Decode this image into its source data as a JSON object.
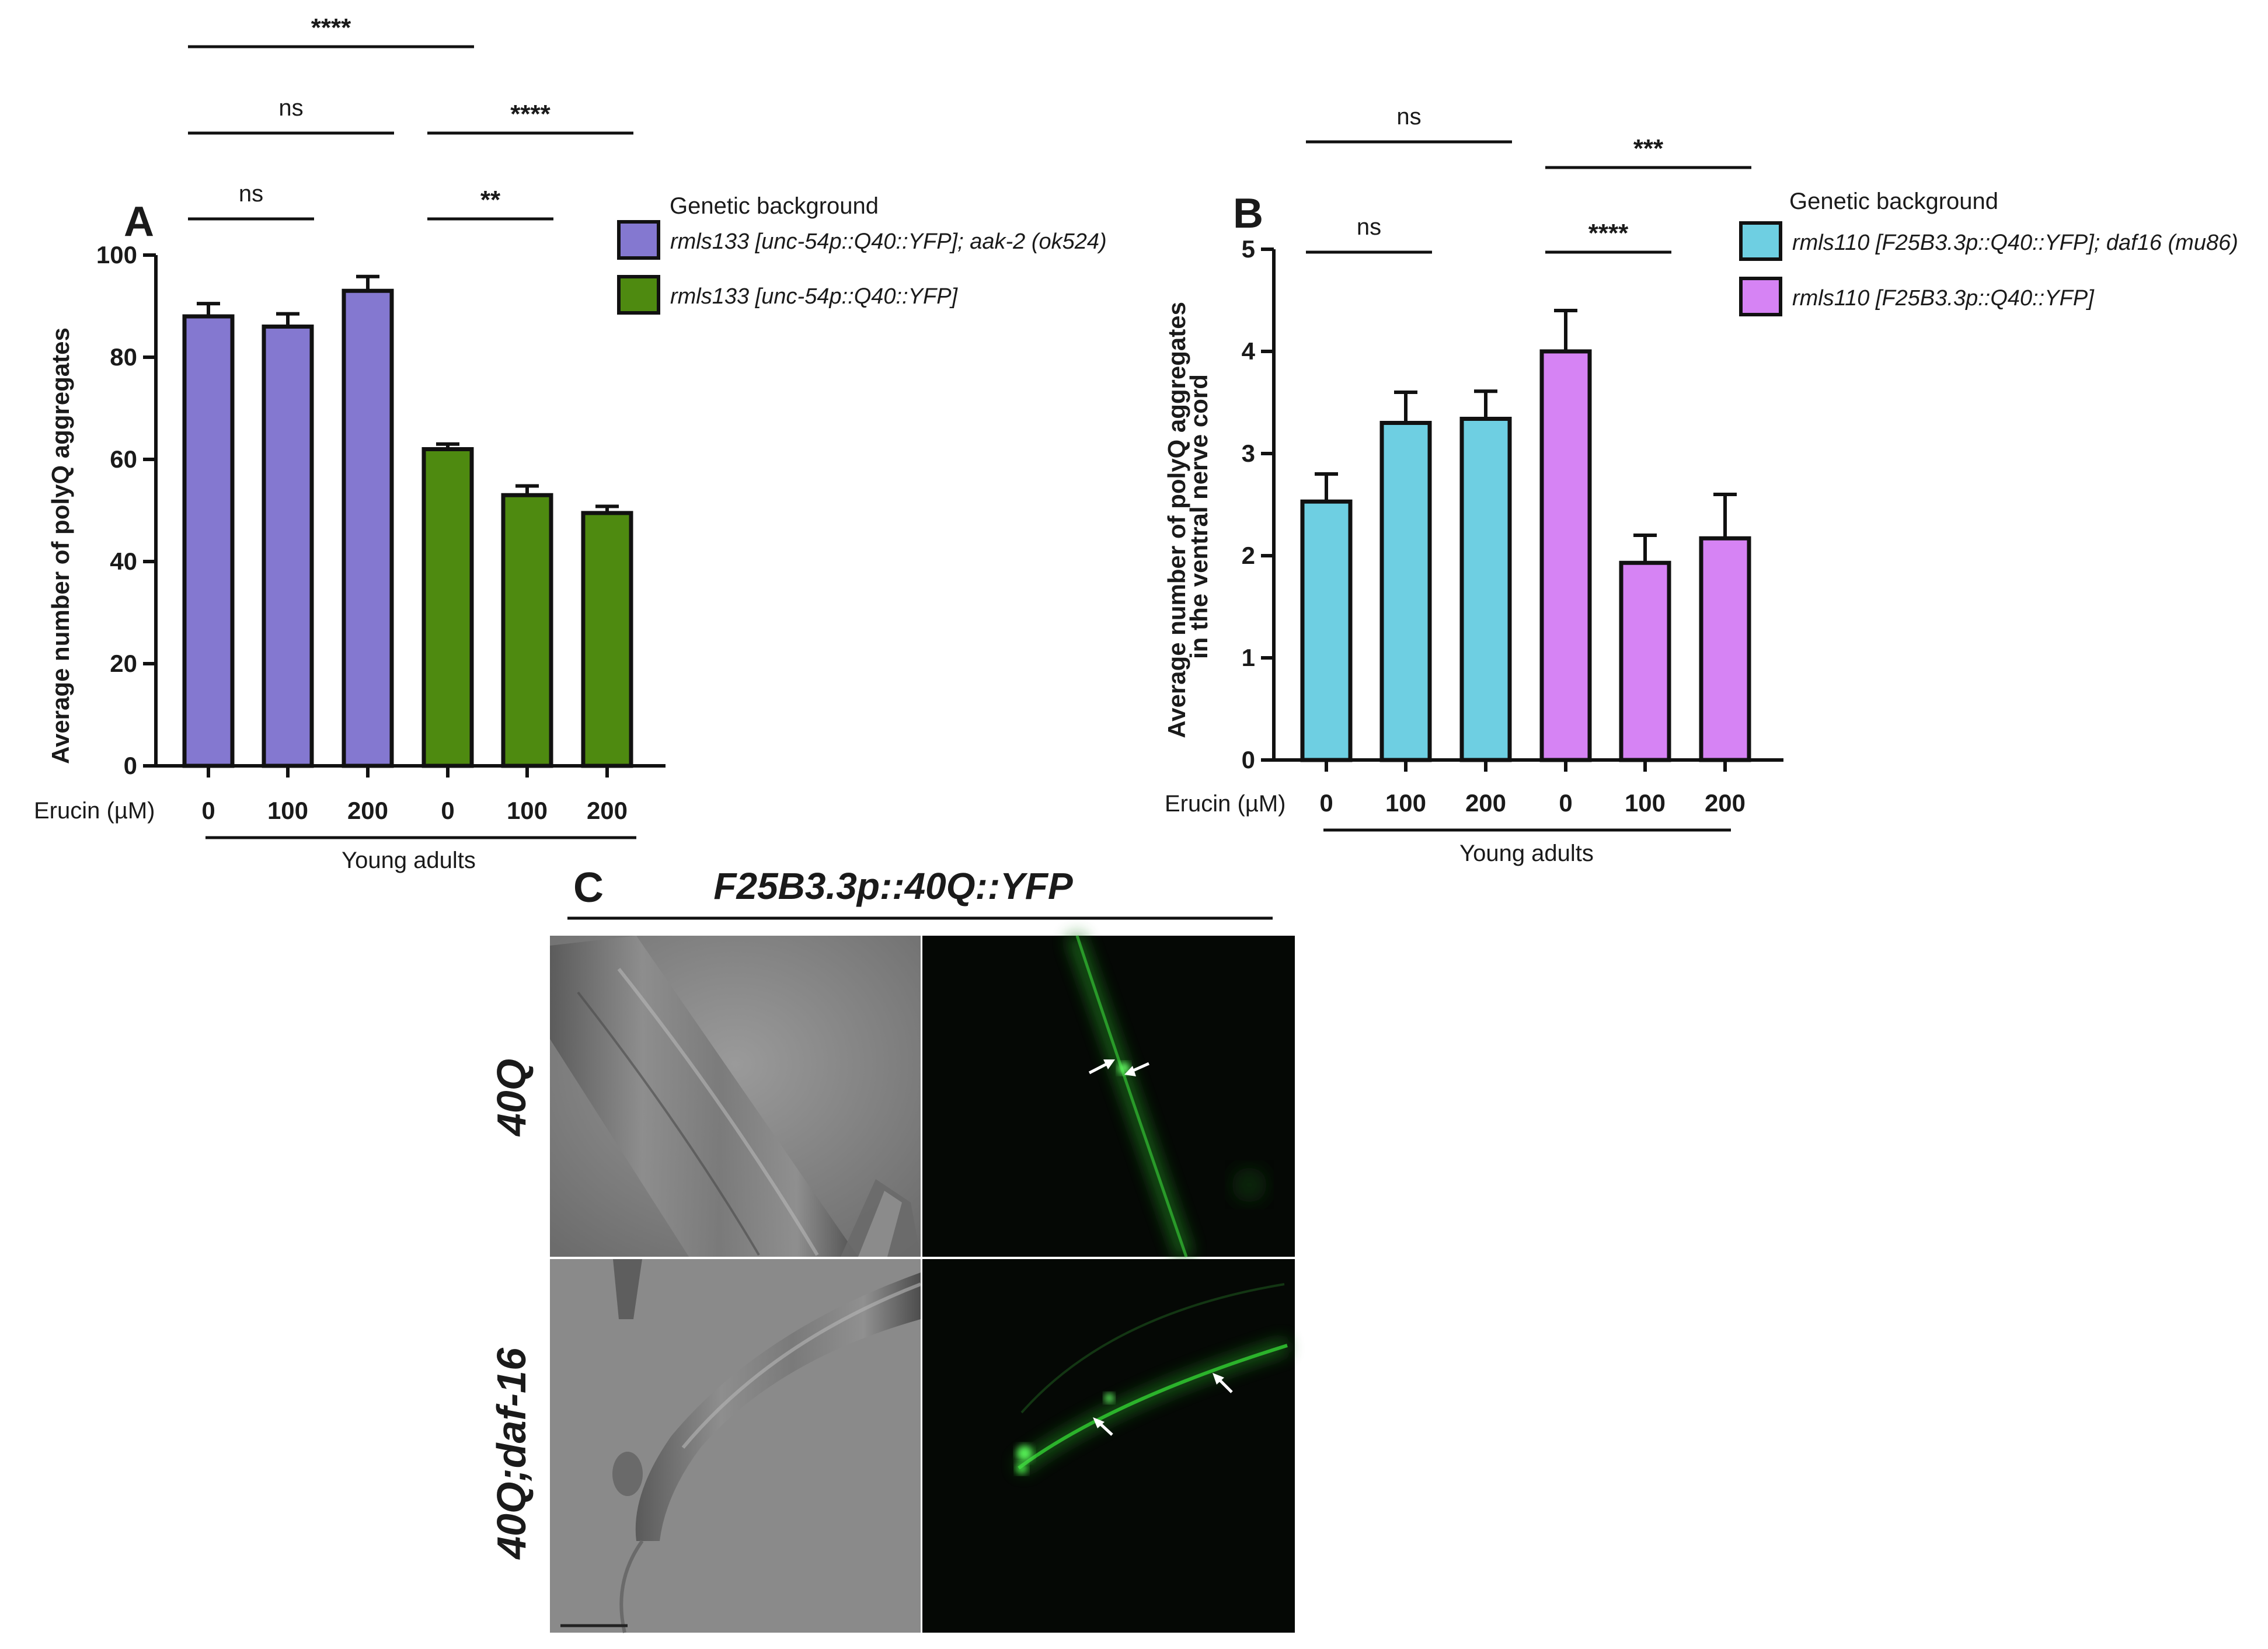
{
  "chart_data": [
    {
      "type": "bar",
      "panel": "A",
      "ylabel": "Average number of polyQ aggregates",
      "xlabel": "Erucin (µM)",
      "group_label": "Young adults",
      "ylim": [
        0,
        100
      ],
      "yticks": [
        "0",
        "20",
        "40",
        "60",
        "80",
        "100"
      ],
      "categories": [
        "0",
        "100",
        "200",
        "0",
        "100",
        "200"
      ],
      "values": [
        88,
        86,
        93,
        62,
        53,
        49.5
      ],
      "errors": [
        2.5,
        2.5,
        2.8,
        1.0,
        1.8,
        1.3
      ],
      "bar_colors": [
        "#8478d0",
        "#8478d0",
        "#8478d0",
        "#4e8a10",
        "#4e8a10",
        "#4e8a10"
      ],
      "legend_title": "Genetic background",
      "series": [
        {
          "name": "rmls133 [unc-54p::Q40::YFP]; aak-2 (ok524)",
          "color": "#8478d0"
        },
        {
          "name": "rmls133 [unc-54p::Q40::YFP]",
          "color": "#4e8a10"
        }
      ],
      "significance": [
        {
          "from": 0,
          "to": 1,
          "label": "ns"
        },
        {
          "from": 0,
          "to": 2,
          "label": "ns"
        },
        {
          "from": 0,
          "to": 3,
          "label": "****"
        },
        {
          "from": 3,
          "to": 4,
          "label": "**"
        },
        {
          "from": 3,
          "to": 5,
          "label": "****"
        }
      ]
    },
    {
      "type": "bar",
      "panel": "B",
      "ylabel": "Average number of polyQ aggregates in the ventral nerve cord",
      "ylabel_lines": [
        "Average number of polyQ aggregates",
        "in the ventral nerve cord"
      ],
      "xlabel": "Erucin (µM)",
      "group_label": "Young adults",
      "ylim": [
        0,
        5
      ],
      "yticks": [
        "0",
        "1",
        "2",
        "3",
        "4",
        "5"
      ],
      "categories": [
        "0",
        "100",
        "200",
        "0",
        "100",
        "200"
      ],
      "values": [
        2.53,
        3.3,
        3.34,
        4.0,
        1.93,
        2.17
      ],
      "errors": [
        0.27,
        0.3,
        0.27,
        0.4,
        0.27,
        0.43
      ],
      "bar_colors": [
        "#6ecfe2",
        "#6ecfe2",
        "#6ecfe2",
        "#d683f4",
        "#d683f4",
        "#d683f4"
      ],
      "legend_title": "Genetic background",
      "series": [
        {
          "name": "rmls110 [F25B3.3p::Q40::YFP]; daf16 (mu86)",
          "color": "#6ecfe2"
        },
        {
          "name": "rmls110 [F25B3.3p::Q40::YFP]",
          "color": "#d683f4"
        }
      ],
      "significance": [
        {
          "from": 0,
          "to": 1,
          "label": "ns"
        },
        {
          "from": 0,
          "to": 2,
          "label": "ns"
        },
        {
          "from": 3,
          "to": 4,
          "label": "****"
        },
        {
          "from": 3,
          "to": 5,
          "label": "***"
        }
      ]
    }
  ],
  "panel_c": {
    "label": "C",
    "title": "F25B3.3p::40Q::YFP",
    "rows": [
      "40Q",
      "40Q;daf-16"
    ]
  }
}
